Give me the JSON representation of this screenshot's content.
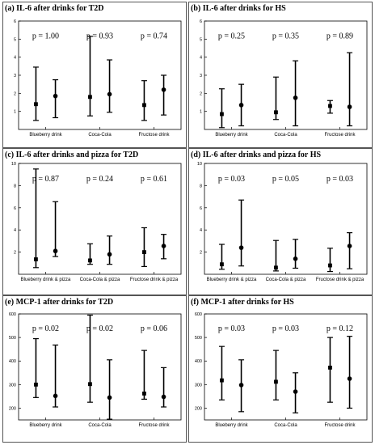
{
  "figure": {
    "background": "#ffffff",
    "ink": "#000000",
    "border_color": "#555555"
  },
  "chart_data": [
    {
      "type": "scatter",
      "subtype": "error-bar",
      "title": "(a) IL-6 after drinks for T2D",
      "ylim": [
        0,
        6
      ],
      "yticks": [
        1,
        2,
        3,
        4,
        5,
        6
      ],
      "categories": [
        "Blueberry drink",
        "Coca-Cola",
        "Fructose drink"
      ],
      "p_values": [
        "p = 1.00",
        "p = 0.93",
        "p = 0.74"
      ],
      "points": [
        {
          "category": "Blueberry drink",
          "center": 1.4,
          "low": 0.5,
          "high": 3.45,
          "marker": "square"
        },
        {
          "category": "Blueberry drink",
          "center": 1.85,
          "low": 0.65,
          "high": 2.75,
          "marker": "circle"
        },
        {
          "category": "Coca-Cola",
          "center": 1.8,
          "low": 0.75,
          "high": 5.15,
          "marker": "square"
        },
        {
          "category": "Coca-Cola",
          "center": 1.95,
          "low": 0.95,
          "high": 3.85,
          "marker": "circle"
        },
        {
          "category": "Fructose drink",
          "center": 1.35,
          "low": 0.5,
          "high": 2.7,
          "marker": "square"
        },
        {
          "category": "Fructose drink",
          "center": 2.2,
          "low": 0.8,
          "high": 3.0,
          "marker": "circle"
        }
      ]
    },
    {
      "type": "scatter",
      "subtype": "error-bar",
      "title": "(b) IL-6 after drinks for HS",
      "ylim": [
        0,
        6
      ],
      "yticks": [
        1,
        2,
        3,
        4,
        5,
        6
      ],
      "categories": [
        "Blueberry drink",
        "Coca-Cola",
        "Fructose drink"
      ],
      "p_values": [
        "p = 0.25",
        "p = 0.35",
        "p = 0.89"
      ],
      "points": [
        {
          "category": "Blueberry drink",
          "center": 0.85,
          "low": 0.1,
          "high": 2.25,
          "marker": "square"
        },
        {
          "category": "Blueberry drink",
          "center": 1.35,
          "low": 0.2,
          "high": 2.5,
          "marker": "circle"
        },
        {
          "category": "Coca-Cola",
          "center": 0.95,
          "low": 0.55,
          "high": 2.9,
          "marker": "square"
        },
        {
          "category": "Coca-Cola",
          "center": 1.75,
          "low": 0.2,
          "high": 3.8,
          "marker": "circle"
        },
        {
          "category": "Fructose drink",
          "center": 1.3,
          "low": 0.9,
          "high": 1.6,
          "marker": "square"
        },
        {
          "category": "Fructose drink",
          "center": 1.25,
          "low": 0.2,
          "high": 4.25,
          "marker": "circle"
        }
      ]
    },
    {
      "type": "scatter",
      "subtype": "error-bar",
      "title": "(c) IL-6 after drinks and pizza for T2D",
      "ylim": [
        0,
        10
      ],
      "yticks": [
        2,
        4,
        6,
        8,
        10
      ],
      "categories": [
        "Blueberry drink & pizza",
        "Coca-Cola & pizza",
        "Fructose drink & pizza"
      ],
      "p_values": [
        "p = 0.87",
        "p = 0.24",
        "p = 0.61"
      ],
      "points": [
        {
          "category": "Blueberry drink & pizza",
          "center": 1.35,
          "low": 0.6,
          "high": 9.5,
          "marker": "square"
        },
        {
          "category": "Blueberry drink & pizza",
          "center": 2.1,
          "low": 1.6,
          "high": 6.55,
          "marker": "circle"
        },
        {
          "category": "Coca-Cola & pizza",
          "center": 1.25,
          "low": 0.9,
          "high": 2.75,
          "marker": "square"
        },
        {
          "category": "Coca-Cola & pizza",
          "center": 1.8,
          "low": 0.9,
          "high": 3.45,
          "marker": "circle"
        },
        {
          "category": "Fructose drink & pizza",
          "center": 2.0,
          "low": 0.7,
          "high": 4.2,
          "marker": "square"
        },
        {
          "category": "Fructose drink & pizza",
          "center": 2.55,
          "low": 1.4,
          "high": 3.6,
          "marker": "circle"
        }
      ]
    },
    {
      "type": "scatter",
      "subtype": "error-bar",
      "title": "(d) IL-6 after drinks and pizza for HS",
      "ylim": [
        0,
        10
      ],
      "yticks": [
        2,
        4,
        6,
        8,
        10
      ],
      "categories": [
        "Blueberry drink & pizza",
        "Coca-Cola & pizza",
        "Fructose drink & pizza"
      ],
      "p_values": [
        "p = 0.03",
        "p = 0.05",
        "p = 0.03"
      ],
      "points": [
        {
          "category": "Blueberry drink & pizza",
          "center": 0.9,
          "low": 0.45,
          "high": 2.7,
          "marker": "square"
        },
        {
          "category": "Blueberry drink & pizza",
          "center": 2.4,
          "low": 0.75,
          "high": 6.7,
          "marker": "circle"
        },
        {
          "category": "Coca-Cola & pizza",
          "center": 0.6,
          "low": 0.3,
          "high": 3.05,
          "marker": "square"
        },
        {
          "category": "Coca-Cola & pizza",
          "center": 1.4,
          "low": 0.55,
          "high": 3.15,
          "marker": "circle"
        },
        {
          "category": "Fructose drink & pizza",
          "center": 0.8,
          "low": 0.25,
          "high": 2.35,
          "marker": "square"
        },
        {
          "category": "Fructose drink & pizza",
          "center": 2.55,
          "low": 0.5,
          "high": 3.75,
          "marker": "circle"
        }
      ]
    },
    {
      "type": "scatter",
      "subtype": "error-bar",
      "title": "(e) MCP-1 after drinks for T2D",
      "ylim": [
        150,
        600
      ],
      "yticks": [
        200,
        300,
        400,
        500,
        600
      ],
      "categories": [
        "Blueberry drink",
        "Coca-Cola",
        "Fructose drink"
      ],
      "p_values": [
        "p = 0.02",
        "p = 0.02",
        "p = 0.06"
      ],
      "points": [
        {
          "category": "Blueberry drink",
          "center": 300,
          "low": 245,
          "high": 495,
          "marker": "square"
        },
        {
          "category": "Blueberry drink",
          "center": 252,
          "low": 205,
          "high": 468,
          "marker": "circle"
        },
        {
          "category": "Coca-Cola",
          "center": 302,
          "low": 225,
          "high": 595,
          "marker": "square"
        },
        {
          "category": "Coca-Cola",
          "center": 245,
          "low": 153,
          "high": 405,
          "marker": "circle"
        },
        {
          "category": "Fructose drink",
          "center": 262,
          "low": 238,
          "high": 445,
          "marker": "square"
        },
        {
          "category": "Fructose drink",
          "center": 248,
          "low": 205,
          "high": 372,
          "marker": "circle"
        }
      ]
    },
    {
      "type": "scatter",
      "subtype": "error-bar",
      "title": "(f) MCP-1 after drinks for HS",
      "ylim": [
        150,
        600
      ],
      "yticks": [
        200,
        300,
        400,
        500,
        600
      ],
      "categories": [
        "Blueberry drink",
        "Coca-Cola",
        "Fructose drink"
      ],
      "p_values": [
        "p = 0.03",
        "p = 0.03",
        "p = 0.12"
      ],
      "points": [
        {
          "category": "Blueberry drink",
          "center": 318,
          "low": 235,
          "high": 462,
          "marker": "square"
        },
        {
          "category": "Blueberry drink",
          "center": 298,
          "low": 185,
          "high": 405,
          "marker": "circle"
        },
        {
          "category": "Coca-Cola",
          "center": 312,
          "low": 235,
          "high": 445,
          "marker": "square"
        },
        {
          "category": "Coca-Cola",
          "center": 270,
          "low": 180,
          "high": 350,
          "marker": "circle"
        },
        {
          "category": "Fructose drink",
          "center": 372,
          "low": 225,
          "high": 500,
          "marker": "square"
        },
        {
          "category": "Fructose drink",
          "center": 325,
          "low": 200,
          "high": 505,
          "marker": "circle"
        }
      ]
    }
  ]
}
